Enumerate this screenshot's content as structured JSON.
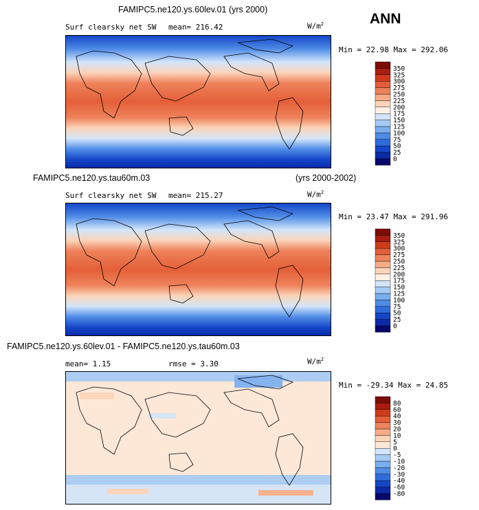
{
  "page_title": "ANN",
  "chart_data": [
    {
      "type": "heatmap",
      "title": "FAMIPC5.ne120.ys.60lev.01 (yrs 2000)",
      "title_right": "",
      "subtitle": "Surf clearsky net SW",
      "stat1": "mean= 216.42",
      "stat2": "",
      "units": "W/m",
      "units_sup": "2",
      "minmax": "Min =  22.98 Max = 292.06",
      "colorbar": {
        "levels": [
          "0",
          "25",
          "50",
          "75",
          "100",
          "125",
          "150",
          "175",
          "200",
          "225",
          "250",
          "275",
          "300",
          "325",
          "350"
        ],
        "colors": [
          "#08086b",
          "#0a2aa8",
          "#1446c8",
          "#2f6bdc",
          "#4f8ce6",
          "#79aef0",
          "#a5cbf5",
          "#d2e5fa",
          "#fdf0e4",
          "#fbd4b9",
          "#f6ab87",
          "#ee825b",
          "#e45f38",
          "#ce3a1c",
          "#a81d10",
          "#7d0c07"
        ]
      }
    },
    {
      "type": "heatmap",
      "title": "FAMIPC5.ne120.ys.tau60m.03",
      "title_right": "(yrs 2000-2002)",
      "subtitle": "Surf clearsky net SW",
      "stat1": "mean= 215.27",
      "stat2": "",
      "units": "W/m",
      "units_sup": "2",
      "minmax": "Min =  23.47 Max = 291.96",
      "colorbar": {
        "levels": [
          "0",
          "25",
          "50",
          "75",
          "100",
          "125",
          "150",
          "175",
          "200",
          "225",
          "250",
          "275",
          "300",
          "325",
          "350"
        ],
        "colors": [
          "#08086b",
          "#0a2aa8",
          "#1446c8",
          "#2f6bdc",
          "#4f8ce6",
          "#79aef0",
          "#a5cbf5",
          "#d2e5fa",
          "#fdf0e4",
          "#fbd4b9",
          "#f6ab87",
          "#ee825b",
          "#e45f38",
          "#ce3a1c",
          "#a81d10",
          "#7d0c07"
        ]
      }
    },
    {
      "type": "heatmap",
      "title": "FAMIPC5.ne120.ys.60lev.01 - FAMIPC5.ne120.ys.tau60m.03",
      "title_right": "",
      "subtitle": "",
      "stat1": "mean=   1.15",
      "stat2": "rmse =   3.30",
      "units": "W/m",
      "units_sup": "2",
      "minmax": "Min = -29.34 Max =  24.85",
      "colorbar": {
        "levels": [
          "-80",
          "-60",
          "-40",
          "-30",
          "-20",
          "-10",
          "-5",
          "0",
          "5",
          "10",
          "20",
          "30",
          "40",
          "60",
          "80"
        ],
        "colors": [
          "#08086b",
          "#0a2aa8",
          "#1446c8",
          "#2f6bdc",
          "#4f8ce6",
          "#79aef0",
          "#a5cbf5",
          "#d2e5fa",
          "#fde8d8",
          "#fbd4b9",
          "#f6ab87",
          "#ee825b",
          "#e45f38",
          "#ce3a1c",
          "#a81d10",
          "#7d0c07"
        ]
      }
    }
  ]
}
